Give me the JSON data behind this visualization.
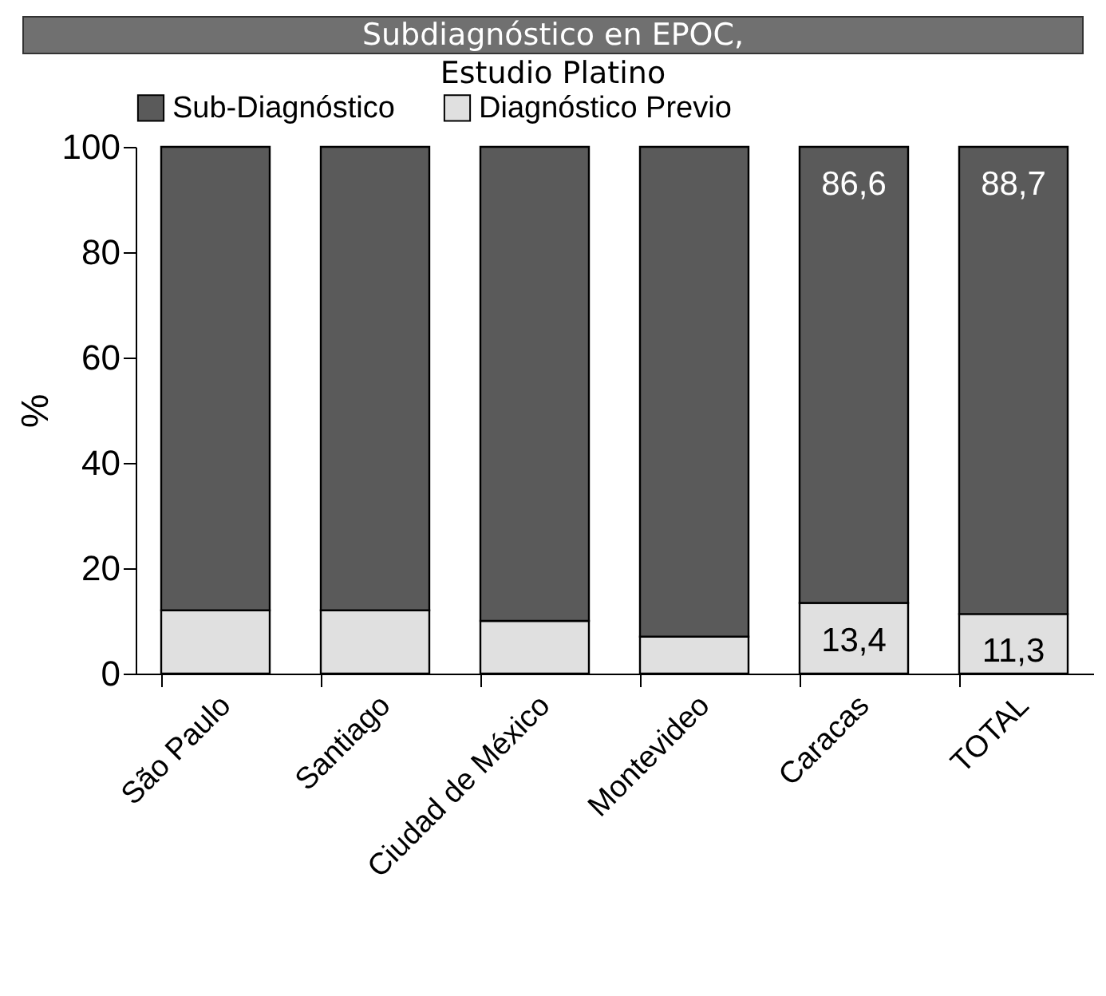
{
  "chart_data": {
    "type": "bar",
    "stacked": true,
    "title": "Subdiagnóstico en EPOC,",
    "subtitle": "Estudio Platino",
    "ylabel": "%",
    "categories": [
      "São Paulo",
      "Santiago",
      "Ciudad de México",
      "Montevideo",
      "Caracas",
      "TOTAL"
    ],
    "series": [
      {
        "name": "Diagnóstico Previo",
        "color": "#e0e0e0",
        "values": [
          12,
          12,
          10,
          7,
          13.4,
          11.3
        ],
        "value_labels": [
          null,
          null,
          null,
          null,
          "13,4",
          "11,3"
        ]
      },
      {
        "name": "Sub-Diagnóstico",
        "color": "#5a5a5a",
        "values": [
          88,
          88,
          90,
          93,
          86.6,
          88.7
        ],
        "value_labels": [
          null,
          null,
          null,
          null,
          "86,6",
          "88,7"
        ]
      }
    ],
    "ylim": [
      0,
      100
    ],
    "yticks": [
      0,
      20,
      40,
      60,
      80,
      100
    ],
    "grid": false,
    "legend": "top"
  }
}
